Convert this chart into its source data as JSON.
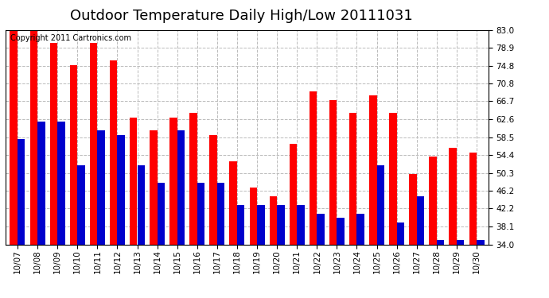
{
  "title": "Outdoor Temperature Daily High/Low 20111031",
  "copyright": "Copyright 2011 Cartronics.com",
  "dates": [
    "10/07",
    "10/08",
    "10/09",
    "10/10",
    "10/11",
    "10/12",
    "10/13",
    "10/14",
    "10/15",
    "10/16",
    "10/17",
    "10/18",
    "10/19",
    "10/20",
    "10/21",
    "10/22",
    "10/23",
    "10/24",
    "10/25",
    "10/26",
    "10/27",
    "10/28",
    "10/29",
    "10/30"
  ],
  "highs": [
    83,
    83,
    80,
    75,
    80,
    76,
    63,
    60,
    63,
    64,
    59,
    53,
    47,
    45,
    57,
    69,
    67,
    64,
    68,
    64,
    50,
    54,
    56,
    55
  ],
  "lows": [
    58,
    62,
    62,
    52,
    60,
    59,
    52,
    48,
    60,
    48,
    48,
    43,
    43,
    43,
    43,
    41,
    40,
    41,
    52,
    39,
    45,
    35,
    35,
    35
  ],
  "high_color": "#ff0000",
  "low_color": "#0000cc",
  "bg_color": "#ffffff",
  "plot_bg_color": "#ffffff",
  "grid_color": "#bbbbbb",
  "yticks": [
    34.0,
    38.1,
    42.2,
    46.2,
    50.3,
    54.4,
    58.5,
    62.6,
    66.7,
    70.8,
    74.8,
    78.9,
    83.0
  ],
  "ymin": 34.0,
  "ymax": 83.0,
  "title_fontsize": 13,
  "copyright_fontsize": 7,
  "tick_fontsize": 7.5,
  "bar_width": 0.38
}
